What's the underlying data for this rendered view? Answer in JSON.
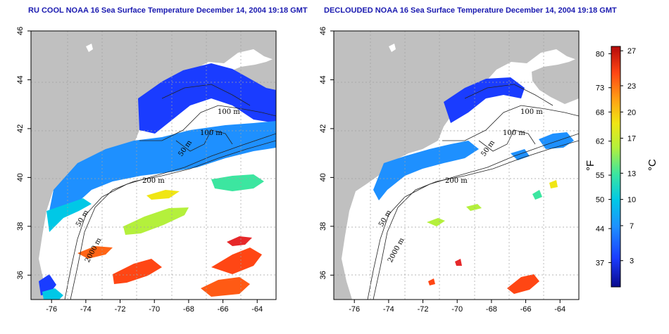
{
  "panels": [
    {
      "id": "left",
      "title": "RU COOL NOAA 16 Sea Surface Temperature December 14, 2004 19:18 GMT",
      "contour_labels": [
        "100 m",
        "100 m",
        "50 m",
        "200 m",
        "50 m",
        "2000 m"
      ]
    },
    {
      "id": "right",
      "title": "DECLOUDED NOAA 16 Sea Surface Temperature December 14, 2004 19:18 GMT",
      "contour_labels": [
        "100 m",
        "100 m",
        "50 m",
        "200 m",
        "50 m",
        "2000 m"
      ]
    }
  ],
  "axes": {
    "x_ticks": [
      "-76",
      "-74",
      "-72",
      "-70",
      "-68",
      "-66",
      "-64"
    ],
    "y_ticks": [
      "36",
      "38",
      "40",
      "42",
      "44",
      "46"
    ],
    "lon_range": [
      -77.2,
      -62.9
    ],
    "lat_range": [
      35.0,
      46.0
    ],
    "grid": "dotted"
  },
  "colorbar": {
    "fahrenheit_label": "°F",
    "celsius_label": "°C",
    "fahrenheit_ticks": [
      {
        "label": "80",
        "value": 80
      },
      {
        "label": "73",
        "value": 73
      },
      {
        "label": "68",
        "value": 68
      },
      {
        "label": "62",
        "value": 62
      },
      {
        "label": "55",
        "value": 55
      },
      {
        "label": "50",
        "value": 50
      },
      {
        "label": "44",
        "value": 44
      },
      {
        "label": "37",
        "value": 37
      }
    ],
    "celsius_ticks": [
      {
        "label": "27",
        "value": 27
      },
      {
        "label": "23",
        "value": 23
      },
      {
        "label": "20",
        "value": 20
      },
      {
        "label": "17",
        "value": 17
      },
      {
        "label": "13",
        "value": 13
      },
      {
        "label": "10",
        "value": 10
      },
      {
        "label": "7",
        "value": 7
      },
      {
        "label": "3",
        "value": 3
      }
    ],
    "range_c": [
      0,
      27.5
    ],
    "colors": [
      "#0a0a8c",
      "#1a3cff",
      "#1e90ff",
      "#00c8e6",
      "#3ce6a0",
      "#b4f03c",
      "#f0e614",
      "#ffa014",
      "#ff4614",
      "#b40a0a"
    ]
  },
  "colors": {
    "land": "#c0c0c0",
    "no_data": "#ffffff",
    "title": "#1a1ab0",
    "grid": "#a0a0a0"
  }
}
